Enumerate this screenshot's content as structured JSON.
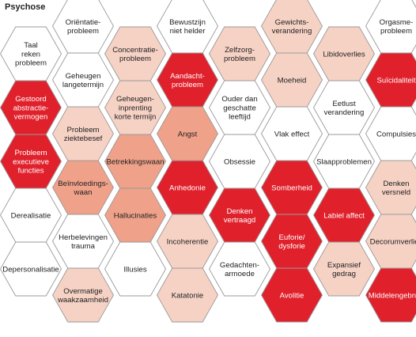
{
  "title": "Psychose",
  "colors": {
    "white": "#ffffff",
    "light": "#f6d2c5",
    "medium": "#efa189",
    "red": "#e0212c",
    "stroke": "#9a9a9a",
    "text_dark": "#222222",
    "text_light": "#ffffff"
  },
  "hexagons": [
    {
      "label": "Taal\nreken\nprobleem",
      "level": "white",
      "col": 0,
      "row": 0
    },
    {
      "label": "Gestoord\nabstractie-\nvermogen",
      "level": "red",
      "col": 0,
      "row": 1
    },
    {
      "label": "Probleem\nexecutieve\nfuncties",
      "level": "red",
      "col": 0,
      "row": 2
    },
    {
      "label": "Derealisatie",
      "level": "white",
      "col": 0,
      "row": 3
    },
    {
      "label": "Depersonalisatie",
      "level": "white",
      "col": 0,
      "row": 4
    },
    {
      "label": "Oriëntatie-\nprobleem",
      "level": "white",
      "col": 1,
      "row": 0
    },
    {
      "label": "Geheugen\nlangetermijn",
      "level": "white",
      "col": 1,
      "row": 1
    },
    {
      "label": "Probleem\nziektebesef",
      "level": "light",
      "col": 1,
      "row": 2
    },
    {
      "label": "Beïnvloedings-\nwaan",
      "level": "medium",
      "col": 1,
      "row": 3
    },
    {
      "label": "Herbelevingen\ntrauma",
      "level": "white",
      "col": 1,
      "row": 4
    },
    {
      "label": "Overmatige\nwaakzaamheid",
      "level": "light",
      "col": 1,
      "row": 5
    },
    {
      "label": "Concentratie-\nprobleem",
      "level": "light",
      "col": 2,
      "row": 0
    },
    {
      "label": "Geheugen-\ninprenting\nkorte termijn",
      "level": "light",
      "col": 2,
      "row": 1
    },
    {
      "label": "Betrekkingswaan",
      "level": "medium",
      "col": 2,
      "row": 2
    },
    {
      "label": "Hallucinaties",
      "level": "medium",
      "col": 2,
      "row": 3
    },
    {
      "label": "Illusies",
      "level": "white",
      "col": 2,
      "row": 4
    },
    {
      "label": "Bewustzijn\nniet helder",
      "level": "white",
      "col": 3,
      "row": 0
    },
    {
      "label": "Aandacht-\nprobleem",
      "level": "red",
      "col": 3,
      "row": 1
    },
    {
      "label": "Angst",
      "level": "medium",
      "col": 3,
      "row": 2
    },
    {
      "label": "Anhedonie",
      "level": "red",
      "col": 3,
      "row": 3
    },
    {
      "label": "Incoherentie",
      "level": "light",
      "col": 3,
      "row": 4
    },
    {
      "label": "Katatonie",
      "level": "light",
      "col": 3,
      "row": 5
    },
    {
      "label": "Zelfzorg-\nprobleem",
      "level": "light",
      "col": 4,
      "row": 0
    },
    {
      "label": "Ouder dan\ngeschatte\nleeftijd",
      "level": "white",
      "col": 4,
      "row": 1
    },
    {
      "label": "Obsessie",
      "level": "white",
      "col": 4,
      "row": 2
    },
    {
      "label": "Denken\nvertraagd",
      "level": "red",
      "col": 4,
      "row": 3
    },
    {
      "label": "Gedachten-\narmoede",
      "level": "white",
      "col": 4,
      "row": 4
    },
    {
      "label": "Gewichts-\nverandering",
      "level": "light",
      "col": 5,
      "row": 0
    },
    {
      "label": "Moeheid",
      "level": "light",
      "col": 5,
      "row": 1
    },
    {
      "label": "Vlak effect",
      "level": "white",
      "col": 5,
      "row": 2
    },
    {
      "label": "Somberheid",
      "level": "red",
      "col": 5,
      "row": 3
    },
    {
      "label": "Euforie/\ndysforie",
      "level": "red",
      "col": 5,
      "row": 4
    },
    {
      "label": "Avolitie",
      "level": "red",
      "col": 5,
      "row": 5
    },
    {
      "label": "Libidoverlies",
      "level": "light",
      "col": 6,
      "row": 0
    },
    {
      "label": "Eetlust\nverandering",
      "level": "white",
      "col": 6,
      "row": 1
    },
    {
      "label": "Slaapproblemen",
      "level": "white",
      "col": 6,
      "row": 2
    },
    {
      "label": "Labiel affect",
      "level": "red",
      "col": 6,
      "row": 3
    },
    {
      "label": "Expansief\ngedrag",
      "level": "light",
      "col": 6,
      "row": 4
    },
    {
      "label": "Orgasme-\nprobleem",
      "level": "white",
      "col": 7,
      "row": 0
    },
    {
      "label": "Suïcidaliteit",
      "level": "red",
      "col": 7,
      "row": 1
    },
    {
      "label": "Compulsies",
      "level": "white",
      "col": 7,
      "row": 2
    },
    {
      "label": "Denken\nversneld",
      "level": "light",
      "col": 7,
      "row": 3
    },
    {
      "label": "Decorumverlies",
      "level": "light",
      "col": 7,
      "row": 4
    },
    {
      "label": "Middelengebruik",
      "level": "red",
      "col": 7,
      "row": 5
    }
  ]
}
